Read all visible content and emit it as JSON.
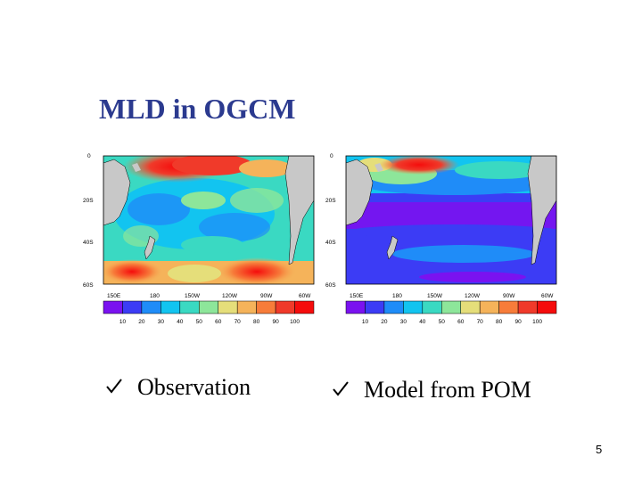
{
  "slide": {
    "title": "MLD in OGCM",
    "page_number": "5"
  },
  "maps": {
    "lat_labels": [
      "0",
      "20S",
      "40S",
      "60S"
    ],
    "lon_labels": [
      "150E",
      "180",
      "150W",
      "120W",
      "90W",
      "60W"
    ],
    "colorbar_ticks": [
      "10",
      "20",
      "30",
      "40",
      "50",
      "60",
      "70",
      "80",
      "90",
      "100"
    ],
    "colorbar_colors": [
      "#7a12f0",
      "#3c3cf5",
      "#1f8cf8",
      "#12c4f0",
      "#3ad9c2",
      "#8de69a",
      "#e5de7a",
      "#f5b35a",
      "#f77c3a",
      "#f03a2a",
      "#f50c0c"
    ],
    "land_color": "#c8c8c8"
  },
  "bullets": [
    {
      "icon": "checkmark-icon",
      "text": "Observation"
    },
    {
      "icon": "checkmark-icon",
      "text": "Model from POM"
    }
  ]
}
